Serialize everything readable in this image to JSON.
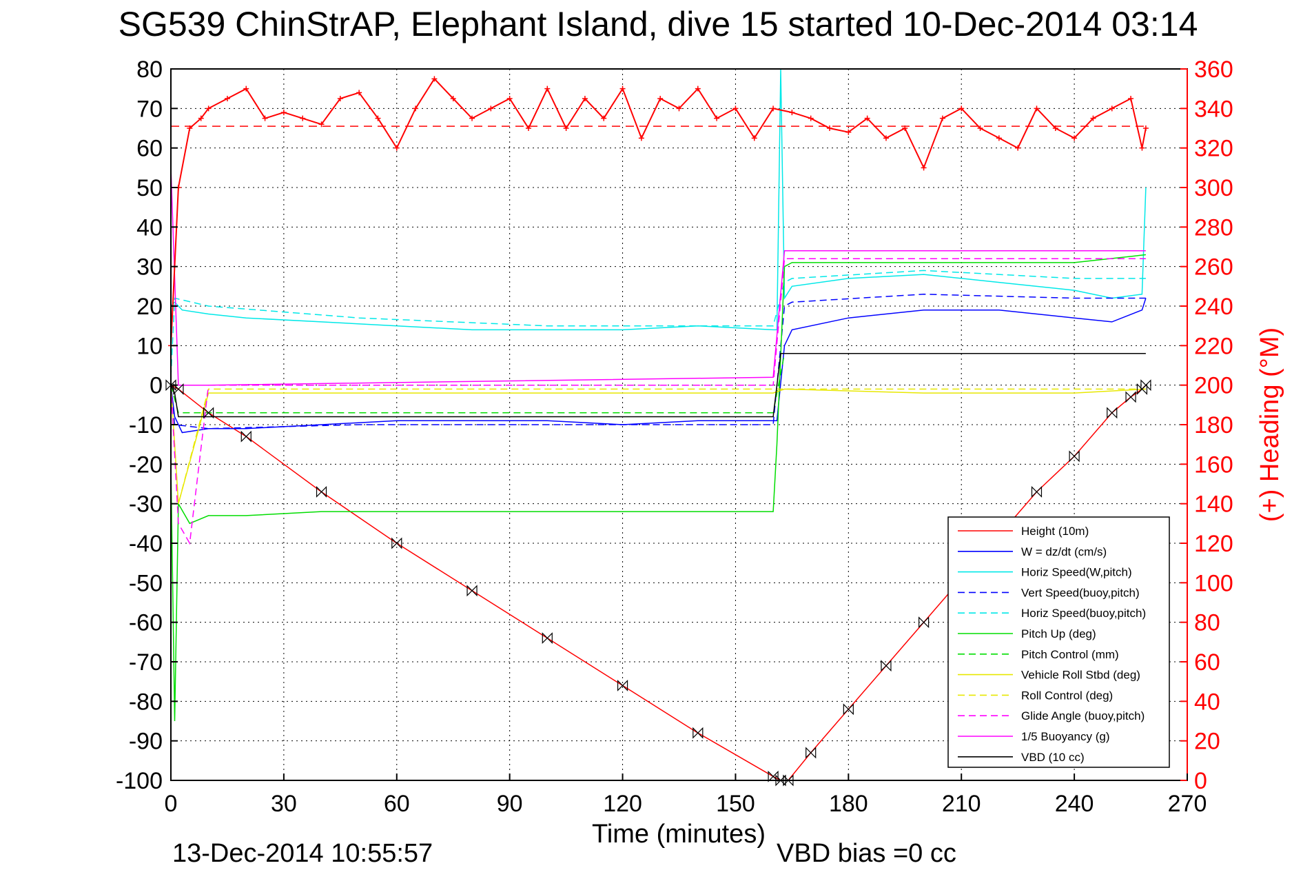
{
  "chart_data": {
    "type": "line",
    "title": "SG539 ChinStrAP, Elephant Island, dive 15 started 10-Dec-2014 03:14",
    "xlabel": "Time (minutes)",
    "ylabel_right": "(+) Heading (°M)",
    "xlim": [
      0,
      270
    ],
    "ylim": [
      -100,
      80
    ],
    "ylim_right": [
      0,
      360
    ],
    "xticks": [
      "0",
      "30",
      "60",
      "90",
      "120",
      "150",
      "180",
      "210",
      "240",
      "270"
    ],
    "yticks": [
      "-100",
      "-90",
      "-80",
      "-70",
      "-60",
      "-50",
      "-40",
      "-30",
      "-20",
      "-10",
      "0",
      "10",
      "20",
      "30",
      "40",
      "50",
      "60",
      "70",
      "80"
    ],
    "yticks_right": [
      "0",
      "20",
      "40",
      "60",
      "80",
      "100",
      "120",
      "140",
      "160",
      "180",
      "200",
      "220",
      "240",
      "260",
      "280",
      "300",
      "320",
      "340",
      "360"
    ],
    "grid": true,
    "legend_position": "bottom-right",
    "footer_left": "13-Dec-2014 10:55:57",
    "footer_right": "VBD bias =0 cc",
    "colors": {
      "red": "#ff0000",
      "blue": "#0000ff",
      "cyan": "#00e8e8",
      "green": "#00dd00",
      "yellow": "#ffff00",
      "magenta": "#ff00ff",
      "black": "#000000"
    },
    "legend": [
      {
        "label": "Height (10m)",
        "color": "#ff0000",
        "dash": false
      },
      {
        "label": "W = dz/dt (cm/s)",
        "color": "#0000ff",
        "dash": false
      },
      {
        "label": "Horiz Speed(W,pitch)",
        "color": "#00e8e8",
        "dash": false
      },
      {
        "label": "Vert Speed(buoy,pitch)",
        "color": "#0000ff",
        "dash": true
      },
      {
        "label": "Horiz Speed(buoy,pitch)",
        "color": "#00e8e8",
        "dash": true
      },
      {
        "label": "Pitch Up (deg)",
        "color": "#00dd00",
        "dash": false
      },
      {
        "label": "Pitch Control (mm)",
        "color": "#00dd00",
        "dash": true
      },
      {
        "label": "Vehicle Roll Stbd (deg)",
        "color": "#ffff00",
        "dash": false
      },
      {
        "label": "Roll Control (deg)",
        "color": "#ffff00",
        "dash": true
      },
      {
        "label": "Glide Angle (buoy,pitch)",
        "color": "#ff00ff",
        "dash": true
      },
      {
        "label": "1/5 Buoyancy (g)",
        "color": "#ff00ff",
        "dash": false
      },
      {
        "label": "VBD (10 cc)",
        "color": "#000000",
        "dash": false
      }
    ],
    "series": [
      {
        "name": "Height (10m)",
        "x": [
          0,
          2,
          10,
          20,
          40,
          60,
          80,
          100,
          120,
          140,
          160,
          162,
          164,
          170,
          180,
          190,
          200,
          210,
          220,
          230,
          240,
          250,
          255,
          258,
          259
        ],
        "y": [
          0,
          -1,
          -7,
          -13,
          -27,
          -40,
          -52,
          -64,
          -76,
          -88,
          -99,
          -100,
          -100,
          -93,
          -82,
          -71,
          -60,
          -49,
          -38,
          -27,
          -18,
          -7,
          -3,
          -1,
          0
        ]
      },
      {
        "name": "W = dz/dt (cm/s)",
        "x": [
          0,
          1,
          3,
          10,
          20,
          40,
          60,
          80,
          100,
          120,
          140,
          160,
          161,
          163,
          165,
          180,
          200,
          220,
          240,
          250,
          258,
          259
        ],
        "y": [
          0,
          -8,
          -12,
          -11,
          -11,
          -10,
          -9,
          -9,
          -9,
          -10,
          -9,
          -9,
          -9,
          10,
          14,
          17,
          19,
          19,
          17,
          16,
          19,
          22
        ]
      },
      {
        "name": "Horiz Speed(W,pitch)",
        "x": [
          0,
          1,
          3,
          10,
          20,
          40,
          60,
          80,
          100,
          120,
          140,
          160,
          161,
          162,
          163,
          165,
          180,
          200,
          220,
          240,
          250,
          258,
          259
        ],
        "y": [
          20,
          21,
          19,
          18,
          17,
          16,
          15,
          14,
          14,
          14,
          15,
          14,
          14,
          80,
          22,
          25,
          27,
          28,
          26,
          24,
          22,
          23,
          50
        ]
      },
      {
        "name": "Vert Speed(buoy,pitch)",
        "x": [
          0,
          1,
          10,
          50,
          100,
          160,
          163,
          165,
          200,
          240,
          259
        ],
        "y": [
          0,
          -10,
          -11,
          -10,
          -10,
          -10,
          20,
          21,
          23,
          22,
          22
        ]
      },
      {
        "name": "Horiz Speed(buoy,pitch)",
        "x": [
          0,
          1,
          10,
          50,
          100,
          160,
          163,
          165,
          200,
          240,
          259
        ],
        "y": [
          2,
          22,
          20,
          17,
          15,
          15,
          26,
          27,
          29,
          27,
          27
        ]
      },
      {
        "name": "Pitch Up (deg)",
        "x": [
          0,
          1,
          2,
          5,
          10,
          20,
          40,
          80,
          120,
          160,
          161,
          163,
          165,
          200,
          240,
          259
        ],
        "y": [
          -20,
          -85,
          -30,
          -35,
          -33,
          -33,
          -32,
          -32,
          -32,
          -32,
          -15,
          30,
          31,
          31,
          31,
          33
        ]
      },
      {
        "name": "Pitch Control (mm)",
        "x": [
          0,
          2,
          160,
          163,
          259
        ],
        "y": [
          0,
          -7,
          -7,
          8,
          8
        ]
      },
      {
        "name": "Vehicle Roll Stbd (deg)",
        "x": [
          0,
          2,
          10,
          40,
          80,
          120,
          160,
          163,
          200,
          240,
          259
        ],
        "y": [
          0,
          -30,
          -2,
          -2,
          -2,
          -2,
          -2,
          -1,
          -2,
          -2,
          -1
        ]
      },
      {
        "name": "Roll Control (deg)",
        "x": [
          0,
          2,
          10,
          160,
          163,
          259
        ],
        "y": [
          0,
          -30,
          -1,
          -1,
          -1,
          -1
        ]
      },
      {
        "name": "Glide Angle (buoy,pitch)",
        "x": [
          0,
          2,
          5,
          10,
          160,
          163,
          259
        ],
        "y": [
          0,
          -35,
          -40,
          0,
          0,
          32,
          32
        ]
      },
      {
        "name": "1/5 Buoyancy (g)",
        "x": [
          0,
          2,
          10,
          160,
          163,
          259
        ],
        "y": [
          55,
          0,
          0,
          2,
          34,
          34
        ]
      },
      {
        "name": "VBD (10 cc)",
        "x": [
          0,
          1,
          2,
          160,
          162,
          259
        ],
        "y": [
          0,
          -2,
          -8,
          -8,
          8,
          8
        ]
      },
      {
        "name": "Heading",
        "axis": "right",
        "x": [
          0,
          2,
          5,
          8,
          10,
          15,
          20,
          25,
          30,
          35,
          40,
          45,
          50,
          55,
          60,
          65,
          70,
          75,
          80,
          85,
          90,
          95,
          100,
          105,
          110,
          115,
          120,
          125,
          130,
          135,
          140,
          145,
          150,
          155,
          160,
          165,
          170,
          175,
          180,
          185,
          190,
          195,
          200,
          205,
          210,
          215,
          220,
          225,
          230,
          235,
          240,
          245,
          250,
          255,
          258,
          259
        ],
        "y": [
          220,
          300,
          330,
          335,
          340,
          345,
          350,
          335,
          338,
          335,
          332,
          345,
          348,
          335,
          320,
          340,
          355,
          345,
          335,
          340,
          345,
          330,
          350,
          330,
          345,
          335,
          350,
          325,
          345,
          340,
          350,
          335,
          340,
          325,
          340,
          338,
          335,
          330,
          328,
          335,
          325,
          330,
          310,
          335,
          340,
          330,
          325,
          320,
          340,
          330,
          325,
          335,
          340,
          345,
          320,
          330
        ]
      },
      {
        "name": "Heading ref",
        "axis": "right",
        "x": [
          0,
          259
        ],
        "y": [
          331,
          331
        ]
      }
    ]
  }
}
